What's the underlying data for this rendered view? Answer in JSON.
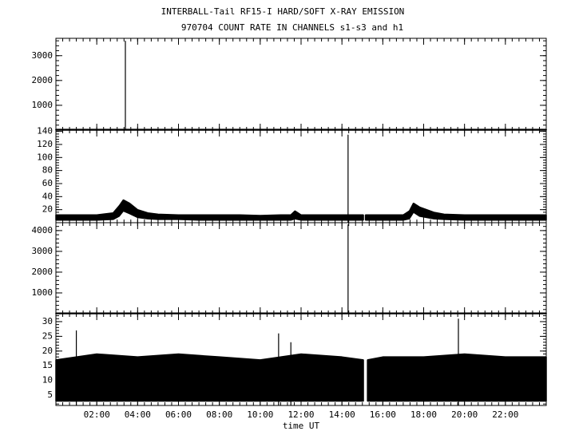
{
  "chart_data": {
    "type": "stacked-panels",
    "title": "INTERBALL-Tail RF15-I HARD/SOFT X-RAY EMISSION",
    "subtitle": "970704  COUNT RATE IN CHANNELS s1-s3 and h1",
    "xlabel": "time UT",
    "xlim": [
      0,
      24
    ],
    "xticks": [
      {
        "value": 2,
        "label": "02:00"
      },
      {
        "value": 4,
        "label": "04:00"
      },
      {
        "value": 6,
        "label": "06:00"
      },
      {
        "value": 8,
        "label": "08:00"
      },
      {
        "value": 10,
        "label": "10:00"
      },
      {
        "value": 12,
        "label": "12:00"
      },
      {
        "value": 14,
        "label": "14:00"
      },
      {
        "value": 16,
        "label": "16:00"
      },
      {
        "value": 18,
        "label": "18:00"
      },
      {
        "value": 20,
        "label": "20:00"
      },
      {
        "value": 22,
        "label": "22:00"
      }
    ],
    "color": "#000000",
    "panels": [
      {
        "type": "band",
        "ylim": [
          0,
          3700
        ],
        "yticks": [
          1000,
          2000,
          3000
        ],
        "x": [
          0,
          24
        ],
        "low": [
          0,
          0
        ],
        "high": [
          30,
          30
        ],
        "spikes": {
          "x": [
            3.4
          ],
          "values": [
            3600
          ]
        }
      },
      {
        "type": "band",
        "ylim": [
          0,
          142
        ],
        "yticks": [
          20,
          40,
          60,
          80,
          100,
          120,
          140
        ],
        "x": [
          0,
          1,
          2,
          2.8,
          3.1,
          3.3,
          3.6,
          4,
          4.5,
          5,
          6,
          7,
          8,
          9,
          10,
          11,
          11.5,
          11.7,
          12,
          13,
          14,
          15.05,
          15.1,
          15.15,
          16,
          17,
          17.3,
          17.5,
          17.8,
          18.5,
          19,
          20,
          21,
          22,
          23,
          24
        ],
        "low": [
          4,
          4,
          4,
          5,
          10,
          18,
          14,
          8,
          6,
          5,
          5,
          4,
          4,
          4,
          4,
          4,
          4,
          6,
          4,
          4,
          4,
          4,
          null,
          4,
          4,
          4,
          6,
          16,
          10,
          6,
          5,
          4,
          4,
          4,
          4,
          4
        ],
        "high": [
          12,
          12,
          12,
          15,
          26,
          35,
          30,
          20,
          15,
          13,
          12,
          12,
          12,
          12,
          11,
          12,
          12,
          18,
          12,
          12,
          12,
          12,
          null,
          12,
          12,
          12,
          18,
          30,
          24,
          16,
          13,
          12,
          12,
          12,
          12,
          12
        ],
        "spikes": {
          "x": [
            14.3
          ],
          "values": [
            135
          ]
        }
      },
      {
        "type": "band",
        "ylim": [
          0,
          4380
        ],
        "yticks": [
          1000,
          2000,
          3000,
          4000
        ],
        "x": [
          0,
          24
        ],
        "low": [
          0,
          0
        ],
        "high": [
          30,
          30
        ],
        "spikes": {
          "x": [
            14.3
          ],
          "values": [
            4300
          ]
        }
      },
      {
        "type": "band",
        "ylim": [
          1.5,
          32.7
        ],
        "yticks": [
          5,
          10,
          15,
          20,
          25,
          30
        ],
        "x": [
          0,
          2,
          4,
          6,
          8,
          10,
          12,
          14,
          15.05,
          15.15,
          15.25,
          16,
          18,
          20,
          22,
          24
        ],
        "low": [
          3,
          3,
          3,
          3,
          3,
          3,
          3,
          3,
          3,
          null,
          3,
          3,
          3,
          3,
          3,
          3
        ],
        "high": [
          17,
          19,
          18,
          19,
          18,
          17,
          19,
          18,
          17,
          null,
          17,
          18,
          18,
          19,
          18,
          18
        ],
        "spikes": {
          "x": [
            1.0,
            10.9,
            11.5,
            19.7
          ],
          "values": [
            27,
            26,
            23,
            31
          ]
        }
      }
    ]
  }
}
